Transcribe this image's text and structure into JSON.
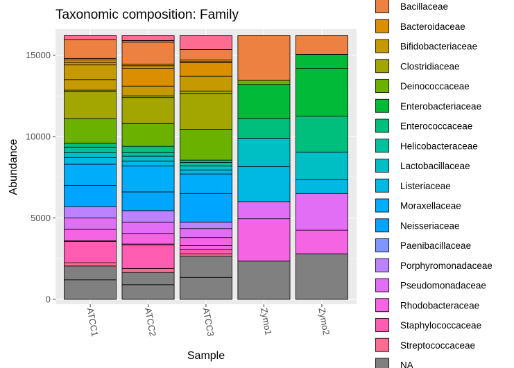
{
  "chart_data": {
    "type": "bar",
    "stacked": true,
    "title": "Taxonomic composition: Family",
    "xlabel": "Sample",
    "ylabel": "Abundance",
    "ylim": [
      -300,
      16600
    ],
    "yticks": [
      0,
      5000,
      10000,
      15000
    ],
    "grid": true,
    "legend_position": "right",
    "categories": [
      "ATCC1",
      "ATCC2",
      "ATCC3",
      "Zymo1",
      "Zymo2"
    ],
    "legend": [
      {
        "name": "Bacillaceae",
        "color": "#ED8141"
      },
      {
        "name": "Bacteroidaceae",
        "color": "#DB8E00"
      },
      {
        "name": "Bifidobacteriaceae",
        "color": "#C49A00"
      },
      {
        "name": "Clostridiaceae",
        "color": "#A3A500"
      },
      {
        "name": "Deinococcaceae",
        "color": "#6BB100"
      },
      {
        "name": "Enterobacteriaceae",
        "color": "#00BA38"
      },
      {
        "name": "Enterococcaceae",
        "color": "#00BF7D"
      },
      {
        "name": "Helicobacteraceae",
        "color": "#00C09D"
      },
      {
        "name": "Lactobacillaceae",
        "color": "#00BFC4"
      },
      {
        "name": "Listeriaceae",
        "color": "#00B9E3"
      },
      {
        "name": "Moraxellaceae",
        "color": "#00ADFA"
      },
      {
        "name": "Neisseriaceae",
        "color": "#00A5FF"
      },
      {
        "name": "Paenibacillaceae",
        "color": "#7F96FF"
      },
      {
        "name": "Porphyromonadaceae",
        "color": "#BC82FF"
      },
      {
        "name": "Pseudomonadaceae",
        "color": "#E36EF6"
      },
      {
        "name": "Rhodobacteraceae",
        "color": "#F564E3"
      },
      {
        "name": "Staphylococcaceae",
        "color": "#FF5DB1"
      },
      {
        "name": "Streptococcaceae",
        "color": "#FF6C91"
      },
      {
        "name": "NA",
        "color": "#808080"
      }
    ],
    "bars": [
      {
        "sample": "ATCC1",
        "segments": [
          {
            "family": "NA",
            "from": 0,
            "to": 1200
          },
          {
            "family": "NA",
            "from": 1200,
            "to": 2050
          },
          {
            "family": "Streptococcaceae",
            "from": 2050,
            "to": 2250
          },
          {
            "family": "Staphylococcaceae",
            "from": 2250,
            "to": 3550
          },
          {
            "family": "Rhodobacteraceae",
            "from": 3550,
            "to": 3600
          },
          {
            "family": "Rhodobacteraceae",
            "from": 3600,
            "to": 4300
          },
          {
            "family": "Pseudomonadaceae",
            "from": 4300,
            "to": 5000
          },
          {
            "family": "Porphyromonadaceae",
            "from": 5000,
            "to": 5700
          },
          {
            "family": "Neisseriaceae",
            "from": 5700,
            "to": 7000
          },
          {
            "family": "Moraxellaceae",
            "from": 7000,
            "to": 8300
          },
          {
            "family": "Listeriaceae",
            "from": 8300,
            "to": 8700
          },
          {
            "family": "Lactobacillaceae",
            "from": 8700,
            "to": 9000
          },
          {
            "family": "Helicobacteraceae",
            "from": 9000,
            "to": 9350
          },
          {
            "family": "Enterococcaceae",
            "from": 9350,
            "to": 9600
          },
          {
            "family": "Deinococcaceae",
            "from": 9600,
            "to": 11100
          },
          {
            "family": "Clostridiaceae",
            "from": 11100,
            "to": 12750
          },
          {
            "family": "Clostridiaceae",
            "from": 12750,
            "to": 12850
          },
          {
            "family": "Bifidobacteriaceae",
            "from": 12850,
            "to": 13500
          },
          {
            "family": "Bifidobacteriaceae",
            "from": 13500,
            "to": 14400
          },
          {
            "family": "Bacteroidaceae",
            "from": 14400,
            "to": 14550
          },
          {
            "family": "Bacteroidaceae",
            "from": 14550,
            "to": 14700
          },
          {
            "family": "Bacteroidaceae",
            "from": 14700,
            "to": 14800
          },
          {
            "family": "Bacillaceae",
            "from": 14800,
            "to": 15950
          },
          {
            "family": "Streptococcaceae",
            "from": 15950,
            "to": 16200
          }
        ]
      },
      {
        "sample": "ATCC2",
        "segments": [
          {
            "family": "NA",
            "from": 0,
            "to": 900
          },
          {
            "family": "NA",
            "from": 900,
            "to": 1650
          },
          {
            "family": "Streptococcaceae",
            "from": 1650,
            "to": 1900
          },
          {
            "family": "Staphylococcaceae",
            "from": 1900,
            "to": 3350
          },
          {
            "family": "Staphylococcaceae",
            "from": 3350,
            "to": 3400
          },
          {
            "family": "Rhodobacteraceae",
            "from": 3400,
            "to": 4050
          },
          {
            "family": "Pseudomonadaceae",
            "from": 4050,
            "to": 4750
          },
          {
            "family": "Porphyromonadaceae",
            "from": 4750,
            "to": 5450
          },
          {
            "family": "Neisseriaceae",
            "from": 5450,
            "to": 6600
          },
          {
            "family": "Moraxellaceae",
            "from": 6600,
            "to": 8200
          },
          {
            "family": "Listeriaceae",
            "from": 8200,
            "to": 8500
          },
          {
            "family": "Lactobacillaceae",
            "from": 8500,
            "to": 8800
          },
          {
            "family": "Helicobacteraceae",
            "from": 8800,
            "to": 9000
          },
          {
            "family": "Enterococcaceae",
            "from": 9000,
            "to": 9400
          },
          {
            "family": "Deinococcaceae",
            "from": 9400,
            "to": 10800
          },
          {
            "family": "Clostridiaceae",
            "from": 10800,
            "to": 12400
          },
          {
            "family": "Clostridiaceae",
            "from": 12400,
            "to": 12500
          },
          {
            "family": "Bifidobacteriaceae",
            "from": 12500,
            "to": 13100
          },
          {
            "family": "Bacteroidaceae",
            "from": 13100,
            "to": 14200
          },
          {
            "family": "Bacteroidaceae",
            "from": 14200,
            "to": 14350
          },
          {
            "family": "Bacteroidaceae",
            "from": 14350,
            "to": 14450
          },
          {
            "family": "Bacillaceae",
            "from": 14450,
            "to": 15800
          },
          {
            "family": "Bacillaceae",
            "from": 15800,
            "to": 15900
          },
          {
            "family": "Streptococcaceae",
            "from": 15900,
            "to": 16200
          }
        ]
      },
      {
        "sample": "ATCC3",
        "segments": [
          {
            "family": "NA",
            "from": 0,
            "to": 1350
          },
          {
            "family": "NA",
            "from": 1350,
            "to": 2650
          },
          {
            "family": "Streptococcaceae",
            "from": 2650,
            "to": 2800
          },
          {
            "family": "Staphylococcaceae",
            "from": 2800,
            "to": 3050
          },
          {
            "family": "Rhodobacteraceae",
            "from": 3050,
            "to": 3300
          },
          {
            "family": "Rhodobacteraceae",
            "from": 3300,
            "to": 3800
          },
          {
            "family": "Pseudomonadaceae",
            "from": 3800,
            "to": 4350
          },
          {
            "family": "Porphyromonadaceae",
            "from": 4350,
            "to": 4750
          },
          {
            "family": "Neisseriaceae",
            "from": 4750,
            "to": 6500
          },
          {
            "family": "Moraxellaceae",
            "from": 6500,
            "to": 7700
          },
          {
            "family": "Listeriaceae",
            "from": 7700,
            "to": 7950
          },
          {
            "family": "Lactobacillaceae",
            "from": 7950,
            "to": 8200
          },
          {
            "family": "Helicobacteraceae",
            "from": 8200,
            "to": 8400
          },
          {
            "family": "Enterococcaceae",
            "from": 8400,
            "to": 8550
          },
          {
            "family": "Deinococcaceae",
            "from": 8550,
            "to": 10450
          },
          {
            "family": "Clostridiaceae",
            "from": 10450,
            "to": 12650
          },
          {
            "family": "Clostridiaceae",
            "from": 12650,
            "to": 12800
          },
          {
            "family": "Bifidobacteriaceae",
            "from": 12800,
            "to": 13700
          },
          {
            "family": "Bacteroidaceae",
            "from": 13700,
            "to": 14550
          },
          {
            "family": "Bacteroidaceae",
            "from": 14550,
            "to": 14600
          },
          {
            "family": "Bacteroidaceae",
            "from": 14600,
            "to": 14700
          },
          {
            "family": "Bacillaceae",
            "from": 14700,
            "to": 15350
          },
          {
            "family": "Streptococcaceae",
            "from": 15350,
            "to": 16200
          }
        ]
      },
      {
        "sample": "Zymo1",
        "segments": [
          {
            "family": "NA",
            "from": 0,
            "to": 2350
          },
          {
            "family": "Rhodobacteraceae",
            "from": 2350,
            "to": 4950
          },
          {
            "family": "Pseudomonadaceae",
            "from": 4950,
            "to": 6000
          },
          {
            "family": "Listeriaceae",
            "from": 6000,
            "to": 8150
          },
          {
            "family": "Lactobacillaceae",
            "from": 8150,
            "to": 9900
          },
          {
            "family": "Enterococcaceae",
            "from": 9900,
            "to": 11100
          },
          {
            "family": "Enterobacteriaceae",
            "from": 11100,
            "to": 13200
          },
          {
            "family": "Deinococcaceae",
            "from": 13200,
            "to": 13450
          },
          {
            "family": "Bacillaceae",
            "from": 13450,
            "to": 16200
          }
        ]
      },
      {
        "sample": "Zymo2",
        "segments": [
          {
            "family": "NA",
            "from": 0,
            "to": 2800
          },
          {
            "family": "Rhodobacteraceae",
            "from": 2800,
            "to": 4250
          },
          {
            "family": "Pseudomonadaceae",
            "from": 4250,
            "to": 6500
          },
          {
            "family": "Listeriaceae",
            "from": 6500,
            "to": 7350
          },
          {
            "family": "Lactobacillaceae",
            "from": 7350,
            "to": 9050
          },
          {
            "family": "Enterococcaceae",
            "from": 9050,
            "to": 11250
          },
          {
            "family": "Enterobacteriaceae",
            "from": 11250,
            "to": 14200
          },
          {
            "family": "Enterobacteriaceae",
            "from": 14200,
            "to": 15050
          },
          {
            "family": "Bacillaceae",
            "from": 15050,
            "to": 16200
          }
        ]
      }
    ]
  }
}
